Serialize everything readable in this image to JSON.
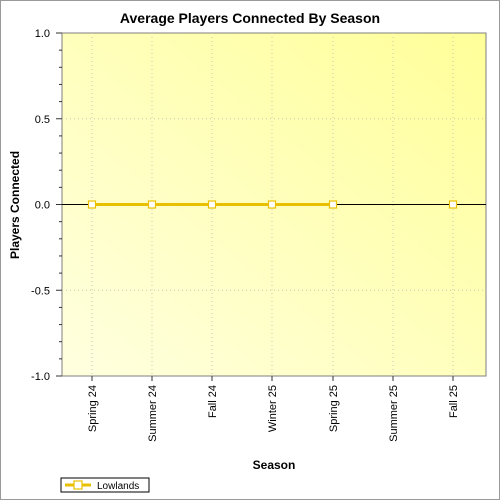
{
  "chart_data": {
    "type": "line",
    "title": "Average Players Connected By Season",
    "xlabel": "Season",
    "ylabel": "Players Connected",
    "categories": [
      "Spring 24",
      "Summer 24",
      "Fall 24",
      "Winter 25",
      "Spring 25",
      "Summer 25",
      "Fall 25"
    ],
    "ylim": [
      -1.0,
      1.0
    ],
    "yticks": [
      "1.0",
      "0.5",
      "0.0",
      "-0.5",
      "-1.0"
    ],
    "grid": true,
    "legend_position": "bottom-left",
    "series": [
      {
        "name": "Lowlands",
        "color": "#e8c000",
        "values": [
          0,
          0,
          0,
          0,
          0,
          null,
          0
        ]
      }
    ]
  }
}
